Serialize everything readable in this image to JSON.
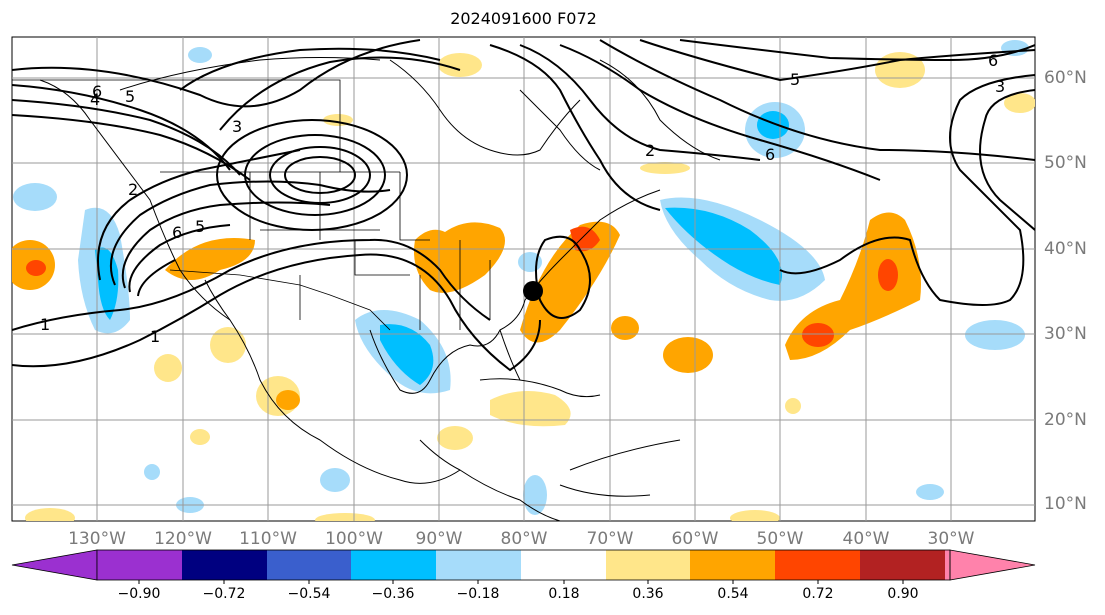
{
  "title": "2024091600 F072",
  "map": {
    "lat_labels": [
      "60°N",
      "50°N",
      "40°N",
      "30°N",
      "20°N",
      "10°N"
    ],
    "lon_labels": [
      "130°W",
      "120°W",
      "110°W",
      "100°W",
      "90°W",
      "80°W",
      "70°W",
      "60°W",
      "50°W",
      "40°W",
      "30°W"
    ],
    "contour_labels": [
      "1",
      "1",
      "2",
      "3",
      "3",
      "4",
      "5",
      "5",
      "5",
      "6",
      "6",
      "6",
      "6",
      "2"
    ],
    "marker": "storm-center-dot"
  },
  "colorbar": {
    "ticks": [
      "−0.90",
      "−0.72",
      "−0.54",
      "−0.36",
      "−0.18",
      "0.18",
      "0.36",
      "0.54",
      "0.72",
      "0.90"
    ],
    "colors": [
      "#9b30d0",
      "#000080",
      "#3a5fcd",
      "#00bfff",
      "#a6dcfa",
      "#ffffff",
      "#ffe68a",
      "#ffa500",
      "#ff4500",
      "#b22222",
      "#ff82ab"
    ]
  }
}
